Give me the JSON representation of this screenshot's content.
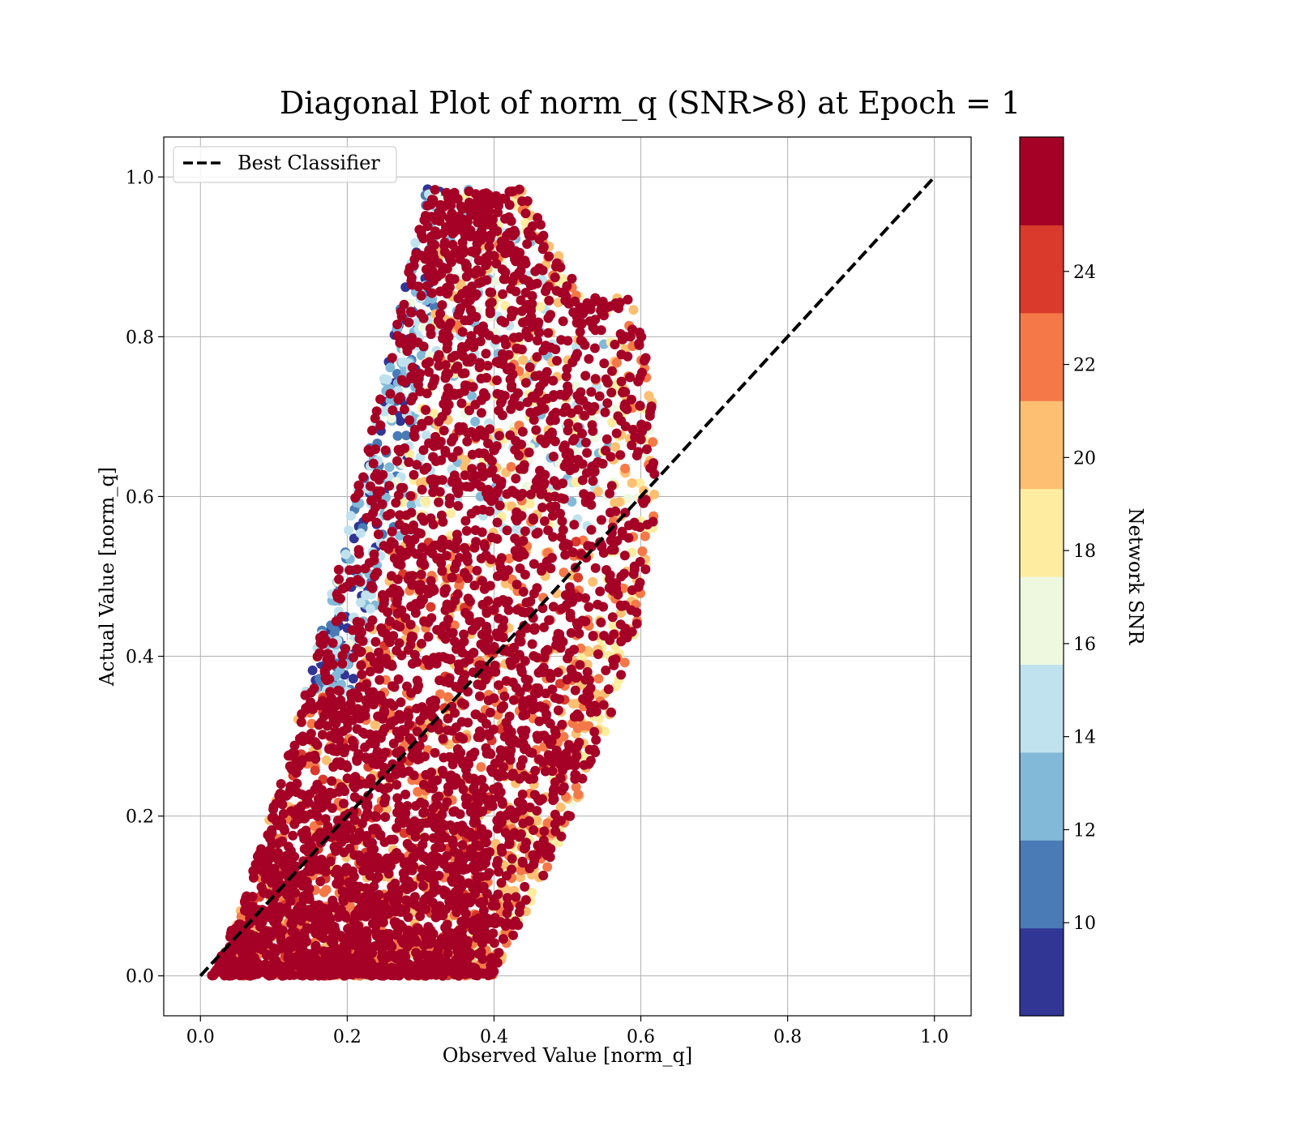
{
  "chart_data": {
    "type": "scatter",
    "title": "Diagonal Plot of norm_q (SNR>8) at Epoch = 1",
    "xlabel": "Observed Value [norm_q]",
    "ylabel": "Actual Value [norm_q]",
    "xlim": [
      -0.05,
      1.05
    ],
    "ylim": [
      -0.05,
      1.05
    ],
    "xticks": [
      "0.0",
      "0.2",
      "0.4",
      "0.6",
      "0.8",
      "1.0"
    ],
    "yticks": [
      "0.0",
      "0.2",
      "0.4",
      "0.6",
      "0.8",
      "1.0"
    ],
    "grid": true,
    "legend": {
      "placement": "top-left",
      "entries": [
        "Best Classifier"
      ]
    },
    "reference_line": {
      "name": "Best Classifier",
      "x": [
        0.0,
        1.0
      ],
      "y": [
        0.0,
        1.0
      ],
      "color": "#000000",
      "style": "dashed"
    },
    "colorbar": {
      "label": "Network SNR",
      "range": [
        8,
        25
      ],
      "ticks": [
        "10",
        "12",
        "14",
        "16",
        "18",
        "20",
        "22",
        "24"
      ],
      "tick_values": [
        10,
        12,
        14,
        16,
        18,
        20,
        22,
        24
      ],
      "bins": [
        {
          "from": 8,
          "to": 9.89,
          "color": "#313695"
        },
        {
          "from": 9.89,
          "to": 11.78,
          "color": "#4a7bb7"
        },
        {
          "from": 11.78,
          "to": 13.67,
          "color": "#83b9d8"
        },
        {
          "from": 13.67,
          "to": 15.56,
          "color": "#c0e2ee"
        },
        {
          "from": 15.56,
          "to": 17.44,
          "color": "#eef8df"
        },
        {
          "from": 17.44,
          "to": 19.33,
          "color": "#feeda1"
        },
        {
          "from": 19.33,
          "to": 21.22,
          "color": "#fdbf71"
        },
        {
          "from": 21.22,
          "to": 23.11,
          "color": "#f57948"
        },
        {
          "from": 23.11,
          "to": 25,
          "color": "#d93a2b"
        },
        {
          "from": 25,
          "to": 26,
          "color": "#a50026"
        }
      ]
    },
    "points_description_data": {
      "count_approx": "dense",
      "x_range": [
        0.01,
        0.62
      ],
      "y_range": [
        0.0,
        0.99
      ],
      "bulk_region": {
        "x": [
          0.01,
          0.55
        ],
        "y": [
          0.0,
          0.8
        ],
        "dominant_snr": 25
      },
      "low_snr_region": {
        "x": [
          0.05,
          0.35
        ],
        "y": [
          0.3,
          0.99
        ],
        "dominant_snr": 10
      }
    }
  }
}
